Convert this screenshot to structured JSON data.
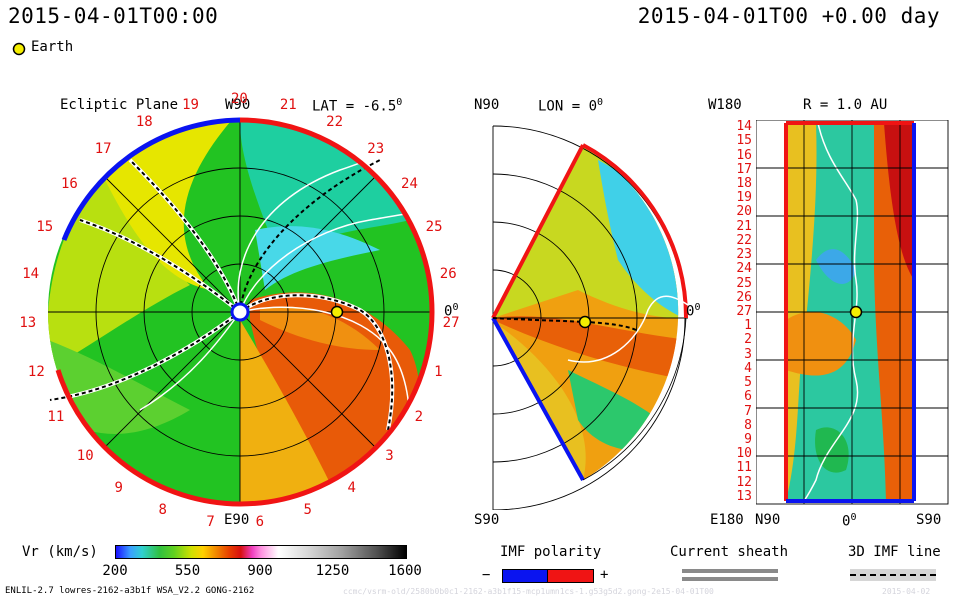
{
  "header": {
    "timestamp_left": "2015-04-01T00:00",
    "timestamp_right": "2015-04-01T00 +0.00 day"
  },
  "legend_marker": {
    "label": "Earth"
  },
  "panels": {
    "ecliptic": {
      "title": "Ecliptic Plane",
      "lat_label": "LAT = -6.5",
      "deg_mark": "0",
      "top_label": "W90",
      "bottom_label": "E90",
      "right_label": "0",
      "rotation_numbers": [
        "20",
        "21",
        "22",
        "23",
        "24",
        "25",
        "26",
        "27",
        "1",
        "2",
        "3",
        "4",
        "5",
        "6",
        "7",
        "8",
        "9",
        "10",
        "11",
        "12",
        "13",
        "14",
        "15",
        "16",
        "17",
        "18",
        "19"
      ]
    },
    "meridional": {
      "top_left": "N90",
      "lon_label": "LON = 0",
      "deg_mark": "0",
      "bottom_label": "S90",
      "right_label": "0"
    },
    "radial": {
      "title": "R = 1.0 AU",
      "top_left": "W180",
      "bottom_left": "E180",
      "x_labels": [
        "N90",
        "0",
        "S90"
      ],
      "rotation_numbers": [
        "14",
        "15",
        "16",
        "17",
        "18",
        "19",
        "20",
        "21",
        "22",
        "23",
        "24",
        "25",
        "26",
        "27",
        "1",
        "2",
        "3",
        "4",
        "5",
        "6",
        "7",
        "8",
        "9",
        "10",
        "11",
        "12",
        "13"
      ]
    }
  },
  "colorbar": {
    "label": "Vr (km/s)",
    "ticks": [
      "200",
      "550",
      "900",
      "1250",
      "1600"
    ]
  },
  "imf_legend": {
    "title": "IMF polarity",
    "minus": "−",
    "plus": "+"
  },
  "sheath_legend": {
    "title": "Current sheath"
  },
  "imf3d_legend": {
    "title": "3D IMF line"
  },
  "footer": {
    "model_info": "ENLIL-2.7 lowres-2162-a3b1f WSA_V2.2 GONG-2162",
    "run_info": "ccmc/vsrm-old/2580b0b0c1-2162-a3b1f15-mcp1umn1cs-1.g53g5d2.gong-2e15-04-01T00",
    "date_info": "2015-04-02"
  },
  "colors": {
    "imf_negative": "#0a14f0",
    "imf_positive": "#f01414",
    "earth_marker": "#f5ee00",
    "sheath_gray": "#8a8a8a"
  },
  "chart_data": {
    "type": "heatmap",
    "variable": "Vr (km/s)",
    "colorbar_range": [
      200,
      1600
    ],
    "colorbar_ticks": [
      200,
      550,
      900,
      1250,
      1600
    ],
    "earth": {
      "lon_deg": 0,
      "lat_deg": -6.5,
      "r_au": 1.0
    },
    "ecliptic_rotation_numbers": [
      20,
      21,
      22,
      23,
      24,
      25,
      26,
      27,
      1,
      2,
      3,
      4,
      5,
      6,
      7,
      8,
      9,
      10,
      11,
      12,
      13,
      14,
      15,
      16,
      17,
      18,
      19
    ],
    "radial_rotation_numbers": [
      14,
      15,
      16,
      17,
      18,
      19,
      20,
      21,
      22,
      23,
      24,
      25,
      26,
      27,
      1,
      2,
      3,
      4,
      5,
      6,
      7,
      8,
      9,
      10,
      11,
      12,
      13
    ]
  }
}
